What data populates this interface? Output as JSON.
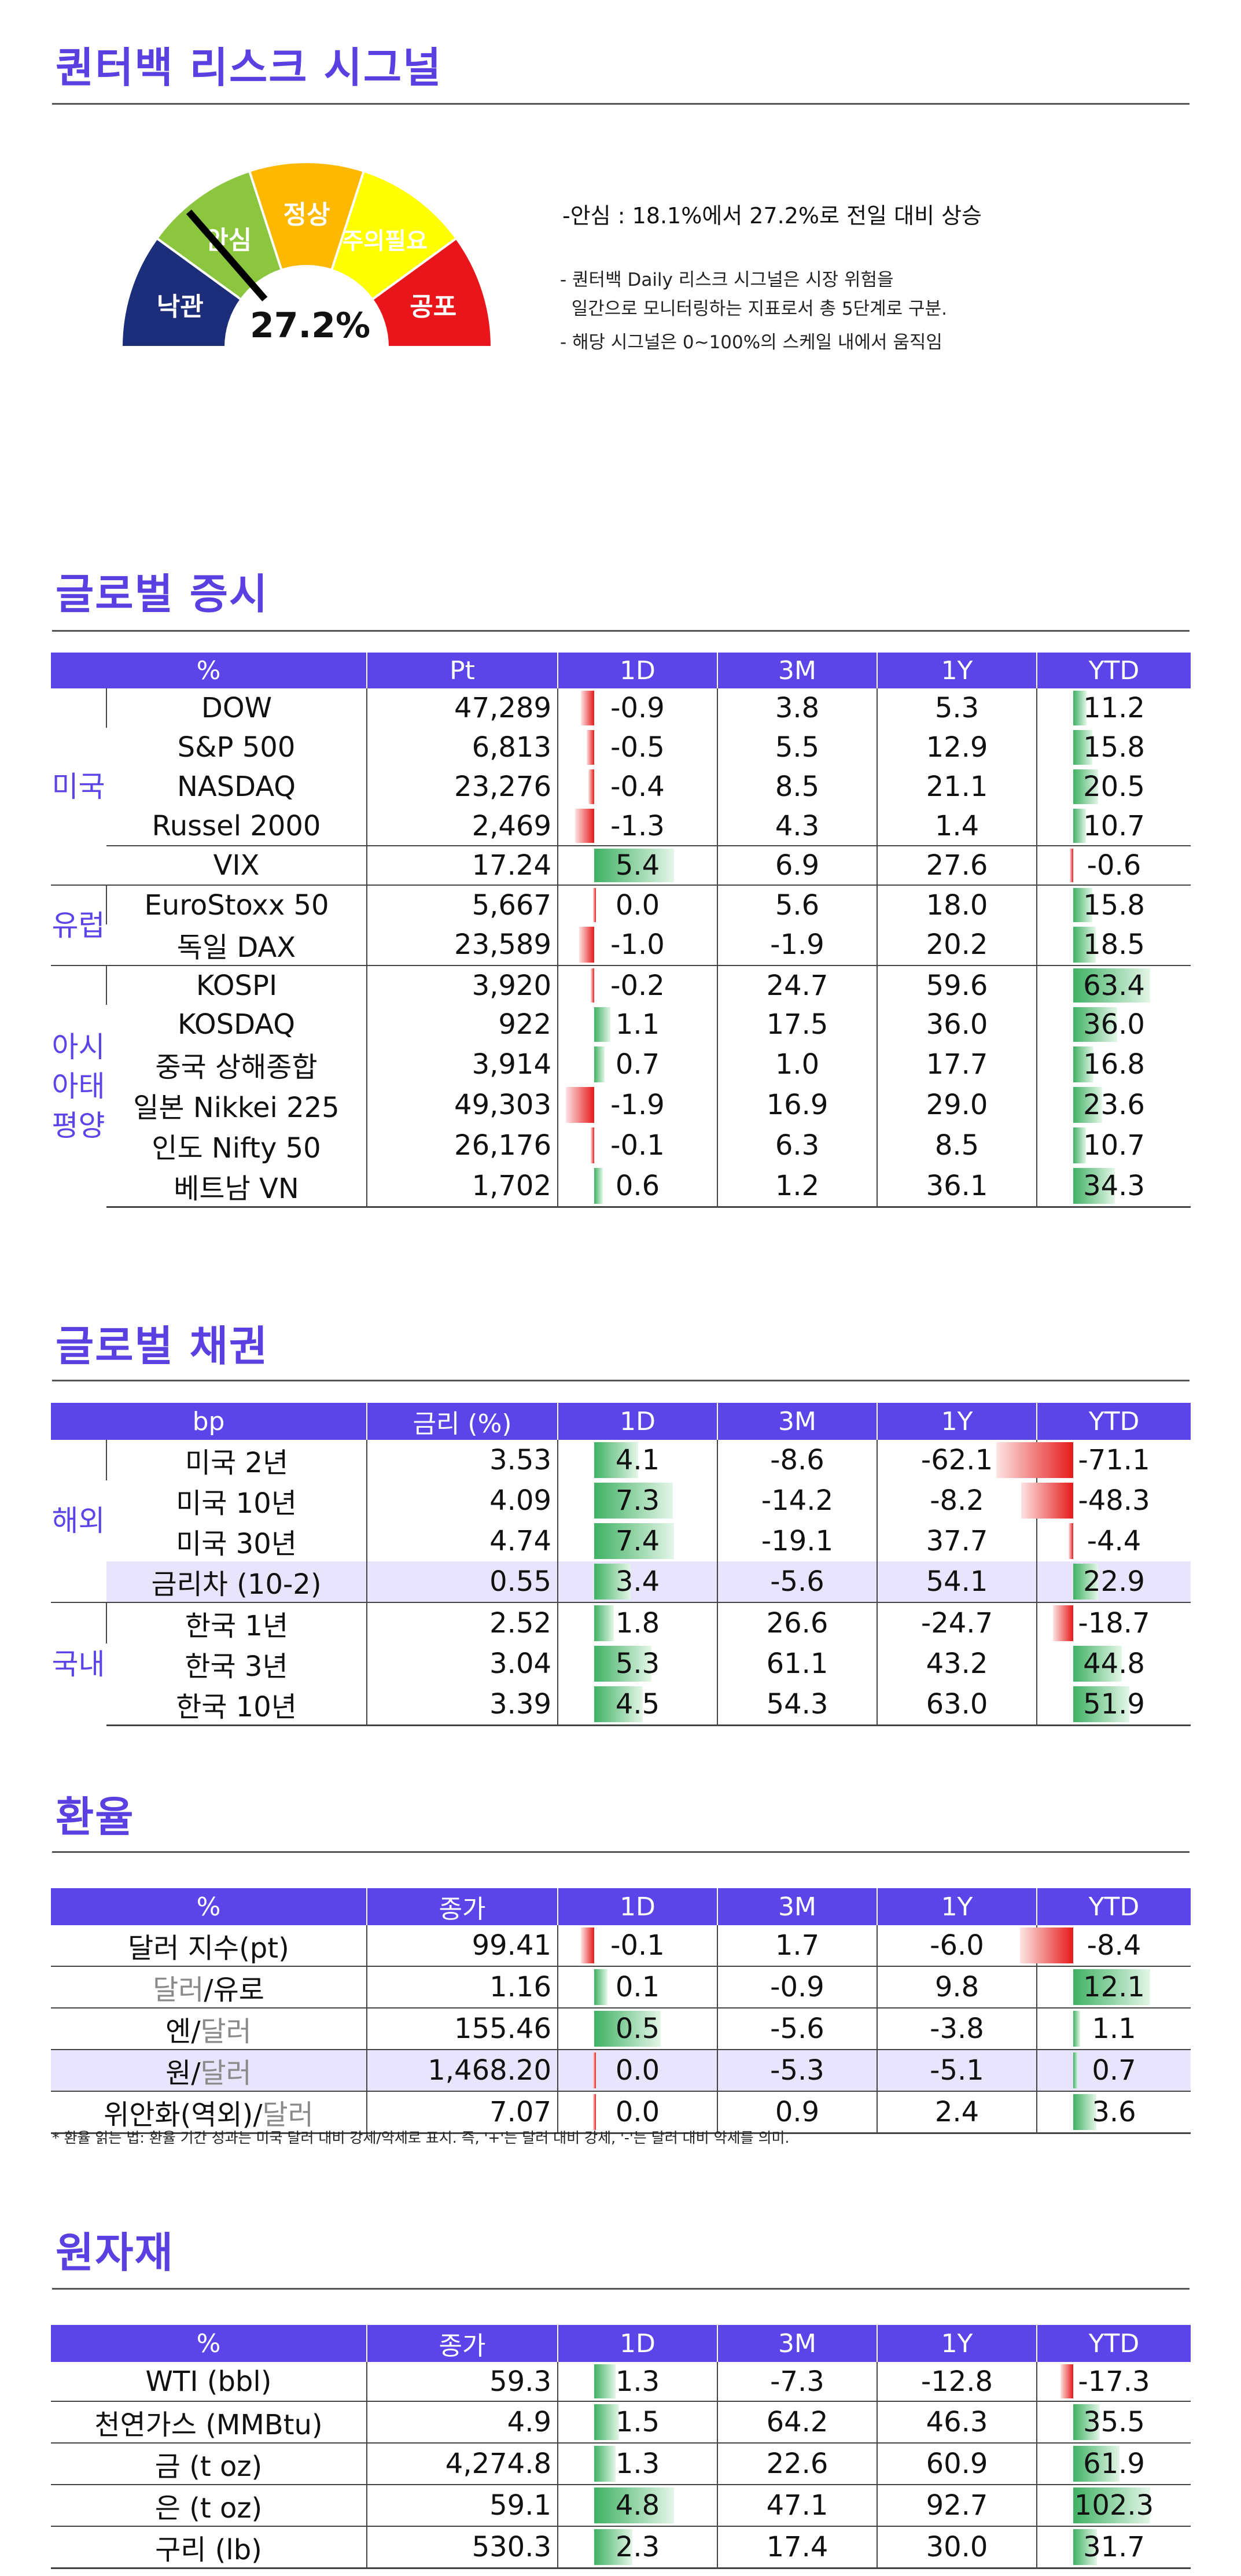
{
  "risk": {
    "title": "퀀터백 리스크 시그널",
    "gauge": {
      "value": 27.2,
      "value_text": "27.2%",
      "zones": [
        {
          "label": "낙관",
          "from": 0,
          "to": 20,
          "color": "#1c2e7a",
          "text_color": "#ffffff"
        },
        {
          "label": "안심",
          "from": 20,
          "to": 40,
          "color": "#8cc63f",
          "text_color": "#ffffff"
        },
        {
          "label": "정상",
          "from": 40,
          "to": 60,
          "color": "#ffb800",
          "text_color": "#ffffff"
        },
        {
          "label": "주의필요",
          "from": 60,
          "to": 80,
          "color": "#ffff00",
          "text_color": "#ffffff"
        },
        {
          "label": "공포",
          "from": 80,
          "to": 100,
          "color": "#e8151b",
          "text_color": "#ffffff"
        }
      ]
    },
    "summary": "-안심 : 18.1%에서 27.2%로 전일 대비 상승",
    "notes": [
      "- 퀀터백 Daily 리스크 시그널은 시장 위험을",
      "  일간으로 모니터링하는 지표로서 총 5단계로 구분.",
      "- 해당 시그널은 0~100%의 스케일 내에서 움직임"
    ]
  },
  "equity": {
    "title": "글로벌 증시",
    "headers": [
      "%",
      "Pt",
      "1D",
      "3M",
      "1Y",
      "YTD"
    ],
    "groups": [
      {
        "label": "미국",
        "rows": [
          {
            "name": "DOW",
            "value": "47,289",
            "d1": -0.9,
            "m3": "3.8",
            "y1": "5.3",
            "ytd": 11.2
          },
          {
            "name": "S&P 500",
            "value": "6,813",
            "d1": -0.5,
            "m3": "5.5",
            "y1": "12.9",
            "ytd": 15.8
          },
          {
            "name": "NASDAQ",
            "value": "23,276",
            "d1": -0.4,
            "m3": "8.5",
            "y1": "21.1",
            "ytd": 20.5
          },
          {
            "name": "Russel 2000",
            "value": "2,469",
            "d1": -1.3,
            "m3": "4.3",
            "y1": "1.4",
            "ytd": 10.7
          },
          {
            "name": "VIX",
            "value": "17.24",
            "d1": 5.4,
            "m3": "6.9",
            "y1": "27.6",
            "ytd": -0.6
          }
        ]
      },
      {
        "label": "유럽",
        "rows": [
          {
            "name": "EuroStoxx 50",
            "value": "5,667",
            "d1": 0.0,
            "m3": "5.6",
            "y1": "18.0",
            "ytd": 15.8
          },
          {
            "name": "독일 DAX",
            "value": "23,589",
            "d1": -1.0,
            "m3": "-1.9",
            "y1": "20.2",
            "ytd": 18.5
          }
        ]
      },
      {
        "label": "아시아태평양",
        "rows": [
          {
            "name": "KOSPI",
            "value": "3,920",
            "d1": -0.2,
            "m3": "24.7",
            "y1": "59.6",
            "ytd": 63.4
          },
          {
            "name": "KOSDAQ",
            "value": "922",
            "d1": 1.1,
            "m3": "17.5",
            "y1": "36.0",
            "ytd": 36.0
          },
          {
            "name": "중국 상해종합",
            "value": "3,914",
            "d1": 0.7,
            "m3": "1.0",
            "y1": "17.7",
            "ytd": 16.8
          },
          {
            "name": "일본 Nikkei 225",
            "value": "49,303",
            "d1": -1.9,
            "m3": "16.9",
            "y1": "29.0",
            "ytd": 23.6
          },
          {
            "name": "인도 Nifty 50",
            "value": "26,176",
            "d1": -0.1,
            "m3": "6.3",
            "y1": "8.5",
            "ytd": 10.7
          },
          {
            "name": "베트남 VN",
            "value": "1,702",
            "d1": 0.6,
            "m3": "1.2",
            "y1": "36.1",
            "ytd": 34.3
          }
        ]
      }
    ]
  },
  "bonds": {
    "title": "글로벌 채권",
    "headers": [
      "bp",
      "금리 (%)",
      "1D",
      "3M",
      "1Y",
      "YTD"
    ],
    "groups": [
      {
        "label": "해외",
        "rows": [
          {
            "name": "미국 2년",
            "value": "3.53",
            "d1": 4.1,
            "m3": "-8.6",
            "y1": "-62.1",
            "ytd": -71.1
          },
          {
            "name": "미국 10년",
            "value": "4.09",
            "d1": 7.3,
            "m3": "-14.2",
            "y1": "-8.2",
            "ytd": -48.3
          },
          {
            "name": "미국 30년",
            "value": "4.74",
            "d1": 7.4,
            "m3": "-19.1",
            "y1": "37.7",
            "ytd": -4.4
          },
          {
            "name": "금리차 (10-2)",
            "value": "0.55",
            "d1": 3.4,
            "m3": "-5.6",
            "y1": "54.1",
            "ytd": 22.9,
            "highlight": true
          }
        ]
      },
      {
        "label": "국내",
        "rows": [
          {
            "name": "한국 1년",
            "value": "2.52",
            "d1": 1.8,
            "m3": "26.6",
            "y1": "-24.7",
            "ytd": -18.7
          },
          {
            "name": "한국 3년",
            "value": "3.04",
            "d1": 5.3,
            "m3": "61.1",
            "y1": "43.2",
            "ytd": 44.8
          },
          {
            "name": "한국 10년",
            "value": "3.39",
            "d1": 4.5,
            "m3": "54.3",
            "y1": "63.0",
            "ytd": 51.9
          }
        ]
      }
    ]
  },
  "fx": {
    "title": "환율",
    "headers": [
      "%",
      "종가",
      "1D",
      "3M",
      "1Y",
      "YTD"
    ],
    "rows": [
      {
        "name_a": "달러 지수(pt)",
        "name_sep": "",
        "name_b": "",
        "value": "99.41",
        "d1": -0.1,
        "m3": "1.7",
        "y1": "-6.0",
        "ytd": -8.4
      },
      {
        "name_a": "달러",
        "name_sep": "/",
        "name_b": "유로",
        "gray_a": true,
        "value": "1.16",
        "d1": 0.1,
        "m3": "-0.9",
        "y1": "9.8",
        "ytd": 12.1
      },
      {
        "name_a": "엔",
        "name_sep": "/",
        "name_b": "달러",
        "gray_b": true,
        "value": "155.46",
        "d1": 0.5,
        "m3": "-5.6",
        "y1": "-3.8",
        "ytd": 1.1
      },
      {
        "name_a": "원",
        "name_sep": "/",
        "name_b": "달러",
        "gray_b": true,
        "value": "1,468.20",
        "d1": 0.0,
        "m3": "-5.3",
        "y1": "-5.1",
        "ytd": 0.7,
        "highlight": true
      },
      {
        "name_a": "위안화(역외)",
        "name_sep": "/",
        "name_b": "달러",
        "gray_b": true,
        "value": "7.07",
        "d1": 0.0,
        "m3": "0.9",
        "y1": "2.4",
        "ytd": 3.6
      }
    ],
    "footnote": "* 환율 읽는 법: 환율 기간 성과는 미국 달러 대비 강세/약세로 표시. 즉, '+'는 달러 대비 강세, '-'는 달러 대비 약세를 의미."
  },
  "commodities": {
    "title": "원자재",
    "headers": [
      "%",
      "종가",
      "1D",
      "3M",
      "1Y",
      "YTD"
    ],
    "rows": [
      {
        "name": "WTI (bbl)",
        "value": "59.3",
        "d1": 1.3,
        "m3": "-7.3",
        "y1": "-12.8",
        "ytd": -17.3
      },
      {
        "name": "천연가스 (MMBtu)",
        "value": "4.9",
        "d1": 1.5,
        "m3": "64.2",
        "y1": "46.3",
        "ytd": 35.5
      },
      {
        "name": "금 (t oz)",
        "value": "4,274.8",
        "d1": 1.3,
        "m3": "22.6",
        "y1": "60.9",
        "ytd": 61.9
      },
      {
        "name": "은 (t oz)",
        "value": "59.1",
        "d1": 4.8,
        "m3": "47.1",
        "y1": "92.7",
        "ytd": 102.3
      },
      {
        "name": "구리 (lb)",
        "value": "530.3",
        "d1": 2.3,
        "m3": "17.4",
        "y1": "30.0",
        "ytd": 31.7
      }
    ]
  }
}
